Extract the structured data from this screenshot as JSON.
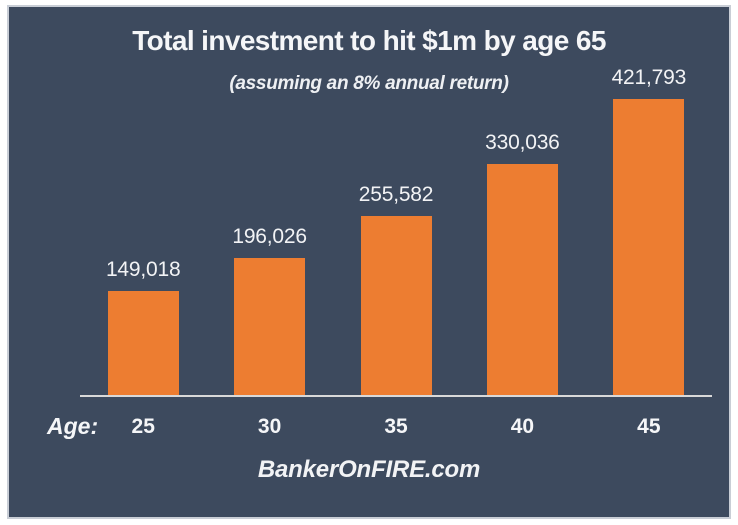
{
  "chart_data": {
    "type": "bar",
    "title": "Total investment to hit $1m by age 65",
    "subtitle": "(assuming an 8% annual return)",
    "x_axis_prefix": "Age:",
    "categories": [
      "25",
      "30",
      "35",
      "40",
      "45"
    ],
    "values": [
      149018,
      196026,
      255582,
      330036,
      421793
    ],
    "value_labels": [
      "149,018",
      "196,026",
      "255,582",
      "330,036",
      "421,793"
    ],
    "xlabel": "",
    "ylabel": "",
    "ylim": [
      0,
      450000
    ],
    "grid": false,
    "legend": false,
    "bar_color": "#ed7d31",
    "background_color": "#3d4a5e",
    "axis_line_color": "#d9d9d9",
    "text_color": "#f2f3f5",
    "border_color": "#c9ced6"
  },
  "footer": {
    "watermark": "BankerOnFIRE.com"
  }
}
